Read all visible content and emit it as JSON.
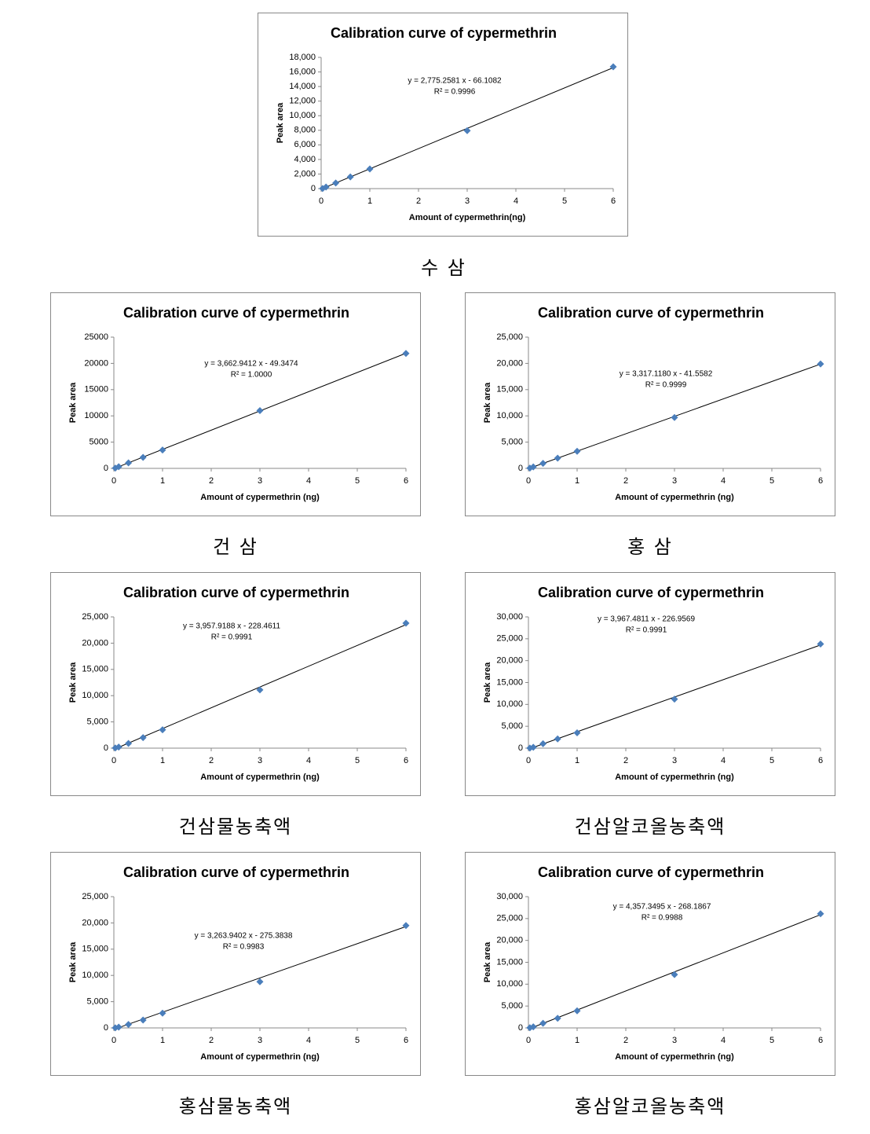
{
  "chart_data": [
    {
      "type": "scatter",
      "title": "Calibration curve of cypermethrin",
      "xlabel": "Amount of cypermethrin(ng)",
      "ylabel": "Peak area",
      "equation": "y = 2,775.2581 x - 66.1082",
      "r2": "R² = 0.9996",
      "trendline": {
        "slope": 2775.2581,
        "intercept": -66.1082
      },
      "x": [
        0.03,
        0.1,
        0.3,
        0.6,
        1,
        3,
        6
      ],
      "values": [
        20,
        210,
        770,
        1600,
        2700,
        7950,
        16700
      ],
      "color": "#4a7ebb",
      "xlim": [
        0,
        6
      ],
      "xticks": [
        0,
        1,
        2,
        3,
        4,
        5,
        6
      ],
      "ylim": [
        0,
        18000
      ],
      "yticks": [
        0,
        {
          "value": 2000,
          "label": "2,000"
        },
        {
          "value": 4000,
          "label": "4,000"
        },
        {
          "value": 6000,
          "label": "6,000"
        },
        {
          "value": 8000,
          "label": "8,000"
        },
        {
          "value": 10000,
          "label": "10,000"
        },
        {
          "value": 12000,
          "label": "12,000"
        },
        {
          "value": 14000,
          "label": "14,000"
        },
        {
          "value": 16000,
          "label": "16,000"
        },
        {
          "value": 18000,
          "label": "18,000"
        }
      ],
      "caption": "수 삼"
    },
    {
      "type": "scatter",
      "title": "Calibration curve of cypermethrin",
      "xlabel": "Amount of cypermethrin (ng)",
      "ylabel": "Peak area",
      "equation": "y = 3,662.9412 x - 49.3474",
      "r2": "R² = 1.0000",
      "trendline": {
        "slope": 3662.9412,
        "intercept": -49.3474
      },
      "x": [
        0.03,
        0.1,
        0.3,
        0.6,
        1,
        3,
        6
      ],
      "values": [
        60,
        320,
        1050,
        2100,
        3500,
        11000,
        21900
      ],
      "color": "#4a7ebb",
      "xlim": [
        0,
        6
      ],
      "xticks": [
        0,
        1,
        2,
        3,
        4,
        5,
        6
      ],
      "ylim": [
        0,
        25000
      ],
      "yticks": [
        0,
        5000,
        10000,
        15000,
        20000,
        25000
      ],
      "caption": "건 삼"
    },
    {
      "type": "scatter",
      "title": "Calibration curve of cypermethrin",
      "xlabel": "Amount of cypermethrin (ng)",
      "ylabel": "Peak area",
      "equation": "y = 3,317.1180 x - 41.5582",
      "r2": "R² = 0.9999",
      "trendline": {
        "slope": 3317.118,
        "intercept": -41.5582
      },
      "x": [
        0.03,
        0.1,
        0.3,
        0.6,
        1,
        3,
        6
      ],
      "values": [
        50,
        290,
        950,
        1950,
        3250,
        9700,
        19900
      ],
      "color": "#4a7ebb",
      "xlim": [
        0,
        6
      ],
      "xticks": [
        0,
        1,
        2,
        3,
        4,
        5,
        6
      ],
      "ylim": [
        0,
        25000
      ],
      "yticks": [
        0,
        {
          "value": 5000,
          "label": "5,000"
        },
        {
          "value": 10000,
          "label": "10,000"
        },
        {
          "value": 15000,
          "label": "15,000"
        },
        {
          "value": 20000,
          "label": "20,000"
        },
        {
          "value": 25000,
          "label": "25,000"
        }
      ],
      "caption": "홍 삼"
    },
    {
      "type": "scatter",
      "title": "Calibration curve of cypermethrin",
      "xlabel": "Amount of cypermethrin (ng)",
      "ylabel": "Peak area",
      "equation": "y = 3,957.9188 x - 228.4611",
      "r2": "R² = 0.9991",
      "trendline": {
        "slope": 3957.9188,
        "intercept": -228.4611
      },
      "x": [
        0.03,
        0.1,
        0.3,
        0.6,
        1,
        3,
        6
      ],
      "values": [
        30,
        200,
        900,
        2000,
        3500,
        11100,
        23800
      ],
      "color": "#4a7ebb",
      "xlim": [
        0,
        6
      ],
      "xticks": [
        0,
        1,
        2,
        3,
        4,
        5,
        6
      ],
      "ylim": [
        0,
        25000
      ],
      "yticks": [
        0,
        {
          "value": 5000,
          "label": "5,000"
        },
        {
          "value": 10000,
          "label": "10,000"
        },
        {
          "value": 15000,
          "label": "15,000"
        },
        {
          "value": 20000,
          "label": "20,000"
        },
        {
          "value": 25000,
          "label": "25,000"
        }
      ],
      "caption": "건삼물농축액"
    },
    {
      "type": "scatter",
      "title": "Calibration curve of cypermethrin",
      "xlabel": "Amount of cypermethrin (ng)",
      "ylabel": "Peak area",
      "equation": "y = 3,967.4811 x - 226.9569",
      "r2": "R² = 0.9991",
      "trendline": {
        "slope": 3967.4811,
        "intercept": -226.9569
      },
      "x": [
        0.03,
        0.1,
        0.3,
        0.6,
        1,
        3,
        6
      ],
      "values": [
        30,
        200,
        1000,
        2100,
        3500,
        11200,
        23800
      ],
      "color": "#4a7ebb",
      "xlim": [
        0,
        6
      ],
      "xticks": [
        0,
        1,
        2,
        3,
        4,
        5,
        6
      ],
      "ylim": [
        0,
        30000
      ],
      "yticks": [
        0,
        {
          "value": 5000,
          "label": "5,000"
        },
        {
          "value": 10000,
          "label": "10,000"
        },
        {
          "value": 15000,
          "label": "15,000"
        },
        {
          "value": 20000,
          "label": "20,000"
        },
        {
          "value": 25000,
          "label": "25,000"
        },
        {
          "value": 30000,
          "label": "30,000"
        }
      ],
      "caption": "건삼알코올농축액"
    },
    {
      "type": "scatter",
      "title": "Calibration curve of cypermethrin",
      "xlabel": "Amount of cypermethrin (ng)",
      "ylabel": "Peak area",
      "equation": "y = 3,263.9402 x - 275.3838",
      "r2": "R² = 0.9983",
      "trendline": {
        "slope": 3263.9402,
        "intercept": -275.3838
      },
      "x": [
        0.03,
        0.1,
        0.3,
        0.6,
        1,
        3,
        6
      ],
      "values": [
        20,
        150,
        650,
        1500,
        2800,
        8800,
        19500
      ],
      "color": "#4a7ebb",
      "xlim": [
        0,
        6
      ],
      "xticks": [
        0,
        1,
        2,
        3,
        4,
        5,
        6
      ],
      "ylim": [
        0,
        25000
      ],
      "yticks": [
        0,
        {
          "value": 5000,
          "label": "5,000"
        },
        {
          "value": 10000,
          "label": "10,000"
        },
        {
          "value": 15000,
          "label": "15,000"
        },
        {
          "value": 20000,
          "label": "20,000"
        },
        {
          "value": 25000,
          "label": "25,000"
        }
      ],
      "caption": "홍삼물농축액"
    },
    {
      "type": "scatter",
      "title": "Calibration curve of cypermethrin",
      "xlabel": "Amount of cypermethrin (ng)",
      "ylabel": "Peak area",
      "equation": "y = 4,357.3495 x - 268.1867",
      "r2": "R² = 0.9988",
      "trendline": {
        "slope": 4357.3495,
        "intercept": -268.1867
      },
      "x": [
        0.03,
        0.1,
        0.3,
        0.6,
        1,
        3,
        6
      ],
      "values": [
        40,
        250,
        1050,
        2200,
        3900,
        12200,
        26100
      ],
      "color": "#4a7ebb",
      "xlim": [
        0,
        6
      ],
      "xticks": [
        0,
        1,
        2,
        3,
        4,
        5,
        6
      ],
      "ylim": [
        0,
        30000
      ],
      "yticks": [
        0,
        {
          "value": 5000,
          "label": "5,000"
        },
        {
          "value": 10000,
          "label": "10,000"
        },
        {
          "value": 15000,
          "label": "15,000"
        },
        {
          "value": 20000,
          "label": "20,000"
        },
        {
          "value": 25000,
          "label": "25,000"
        },
        {
          "value": 30000,
          "label": "30,000"
        }
      ],
      "caption": "홍삼알코올농축액"
    }
  ]
}
